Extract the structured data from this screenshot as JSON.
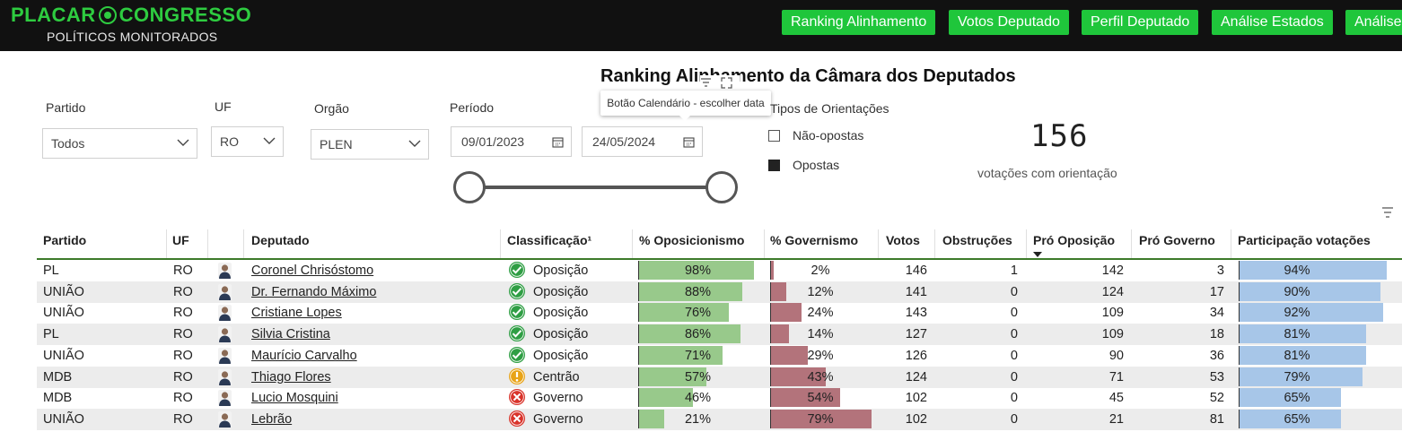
{
  "header": {
    "logo_left": "PLACAR",
    "logo_right": "CONGRESSO",
    "logo_sub": "POLÍTICOS MONITORADOS",
    "nav": [
      "Ranking Alinhamento",
      "Votos Deputado",
      "Perfil Deputado",
      "Análise Estados",
      "Análise"
    ]
  },
  "title": "Ranking Alinhamento da Câmara dos Deputados",
  "tooltip": "Botão Calendário - escolher data",
  "filters": {
    "partido": {
      "label": "Partido",
      "value": "Todos"
    },
    "uf": {
      "label": "UF",
      "value": "RO"
    },
    "orgao": {
      "label": "Orgão",
      "value": "PLEN"
    },
    "periodo": {
      "label": "Período",
      "start": "09/01/2023",
      "end": "24/05/2024"
    }
  },
  "orientacoes": {
    "label": "Tipos de Orientações",
    "items": [
      {
        "label": "Não-opostas",
        "checked": false
      },
      {
        "label": "Opostas",
        "checked": true
      }
    ]
  },
  "kpi": {
    "value": "156",
    "label": "votações com orientação"
  },
  "colors": {
    "accent": "#1fc63b",
    "oposicao_bar": "#98c98b",
    "governo_bar": "#b3737b",
    "participacao_bar": "#a7c6e8",
    "header_line": "#3c7a2a"
  },
  "table": {
    "headers": [
      "Partido",
      "UF",
      "",
      "Deputado",
      "Classificação¹",
      "% Oposicionismo",
      "% Governismo",
      "Votos",
      "Obstruções",
      "Pró Oposição",
      "Pró Governo",
      "Participação votações"
    ],
    "sort_column": "Pró Oposição",
    "rows": [
      {
        "partido": "PL",
        "uf": "RO",
        "deputado": "Coronel Chrisóstomo",
        "classificacao": "Oposição",
        "icon": "check-circle-icon",
        "oposicionismo": 98,
        "oposicionismo_label": "98%",
        "governismo": 2,
        "governismo_label": "2%",
        "votos": "146",
        "obstrucoes": "1",
        "pro_oposicao": "142",
        "pro_governo": "3",
        "participacao": 94,
        "participacao_label": "94%"
      },
      {
        "partido": "UNIÃO",
        "uf": "RO",
        "deputado": "Dr. Fernando Máximo",
        "classificacao": "Oposição",
        "icon": "check-circle-icon",
        "oposicionismo": 88,
        "oposicionismo_label": "88%",
        "governismo": 12,
        "governismo_label": "12%",
        "votos": "141",
        "obstrucoes": "0",
        "pro_oposicao": "124",
        "pro_governo": "17",
        "participacao": 90,
        "participacao_label": "90%"
      },
      {
        "partido": "UNIÃO",
        "uf": "RO",
        "deputado": "Cristiane Lopes",
        "classificacao": "Oposição",
        "icon": "check-circle-icon",
        "oposicionismo": 76,
        "oposicionismo_label": "76%",
        "governismo": 24,
        "governismo_label": "24%",
        "votos": "143",
        "obstrucoes": "0",
        "pro_oposicao": "109",
        "pro_governo": "34",
        "participacao": 92,
        "participacao_label": "92%"
      },
      {
        "partido": "PL",
        "uf": "RO",
        "deputado": "Silvia Cristina",
        "classificacao": "Oposição",
        "icon": "check-circle-icon",
        "oposicionismo": 86,
        "oposicionismo_label": "86%",
        "governismo": 14,
        "governismo_label": "14%",
        "votos": "127",
        "obstrucoes": "0",
        "pro_oposicao": "109",
        "pro_governo": "18",
        "participacao": 81,
        "participacao_label": "81%"
      },
      {
        "partido": "UNIÃO",
        "uf": "RO",
        "deputado": "Maurício Carvalho",
        "classificacao": "Oposição",
        "icon": "check-circle-icon",
        "oposicionismo": 71,
        "oposicionismo_label": "71%",
        "governismo": 29,
        "governismo_label": "29%",
        "votos": "126",
        "obstrucoes": "0",
        "pro_oposicao": "90",
        "pro_governo": "36",
        "participacao": 81,
        "participacao_label": "81%"
      },
      {
        "partido": "MDB",
        "uf": "RO",
        "deputado": "Thiago Flores",
        "classificacao": "Centrão",
        "icon": "exclamation-circle-icon",
        "oposicionismo": 57,
        "oposicionismo_label": "57%",
        "governismo": 43,
        "governismo_label": "43%",
        "votos": "124",
        "obstrucoes": "0",
        "pro_oposicao": "71",
        "pro_governo": "53",
        "participacao": 79,
        "participacao_label": "79%"
      },
      {
        "partido": "MDB",
        "uf": "RO",
        "deputado": "Lucio Mosquini",
        "classificacao": "Governo",
        "icon": "x-circle-icon",
        "oposicionismo": 46,
        "oposicionismo_label": "46%",
        "governismo": 54,
        "governismo_label": "54%",
        "votos": "102",
        "obstrucoes": "0",
        "pro_oposicao": "45",
        "pro_governo": "52",
        "participacao": 65,
        "participacao_label": "65%"
      },
      {
        "partido": "UNIÃO",
        "uf": "RO",
        "deputado": "Lebrão",
        "classificacao": "Governo",
        "icon": "x-circle-icon",
        "oposicionismo": 21,
        "oposicionismo_label": "21%",
        "governismo": 79,
        "governismo_label": "79%",
        "votos": "102",
        "obstrucoes": "0",
        "pro_oposicao": "21",
        "pro_governo": "81",
        "participacao": 65,
        "participacao_label": "65%"
      }
    ]
  }
}
